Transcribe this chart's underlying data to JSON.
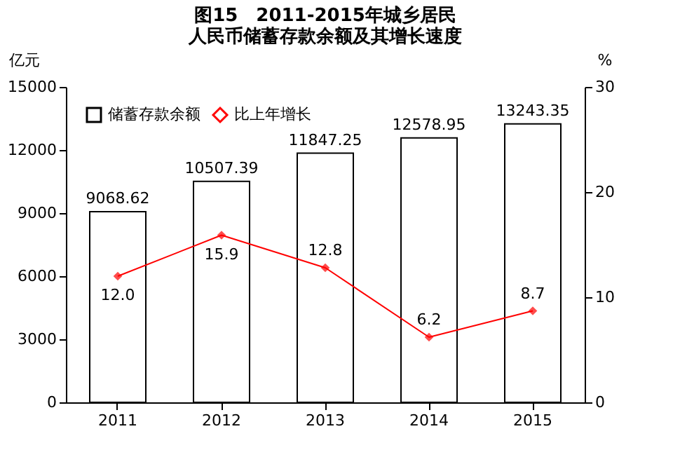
{
  "chart_data": {
    "type": "bar",
    "title": "图15　2011-2015年城乡居民",
    "subtitle": "人民币储蓄存款余额及其增长速度",
    "ylabel": "亿元",
    "y2label": "%",
    "categories": [
      "2011",
      "2012",
      "2013",
      "2014",
      "2015"
    ],
    "series": [
      {
        "name": "储蓄存款余额",
        "color": "#ffffff",
        "values": [
          9068.62,
          10507.39,
          11847.25,
          12578.95,
          13243.35
        ],
        "data_labels": true
      },
      {
        "name": "比上年增长",
        "type": "line",
        "axis": "y2",
        "color": "#ff0000",
        "marker": "diamond",
        "values": [
          12.0,
          15.9,
          12.8,
          6.2,
          8.7
        ],
        "value_labels": [
          "12.0",
          "15.9",
          "12.8",
          "6.2",
          "8.7"
        ]
      }
    ],
    "ylim": [
      0,
      15000
    ],
    "yticks": [
      0,
      3000,
      6000,
      9000,
      12000,
      15000
    ],
    "y2lim": [
      0,
      30
    ],
    "y2ticks": [
      0,
      10,
      20,
      30
    ],
    "grid": false,
    "legend": "top left"
  }
}
